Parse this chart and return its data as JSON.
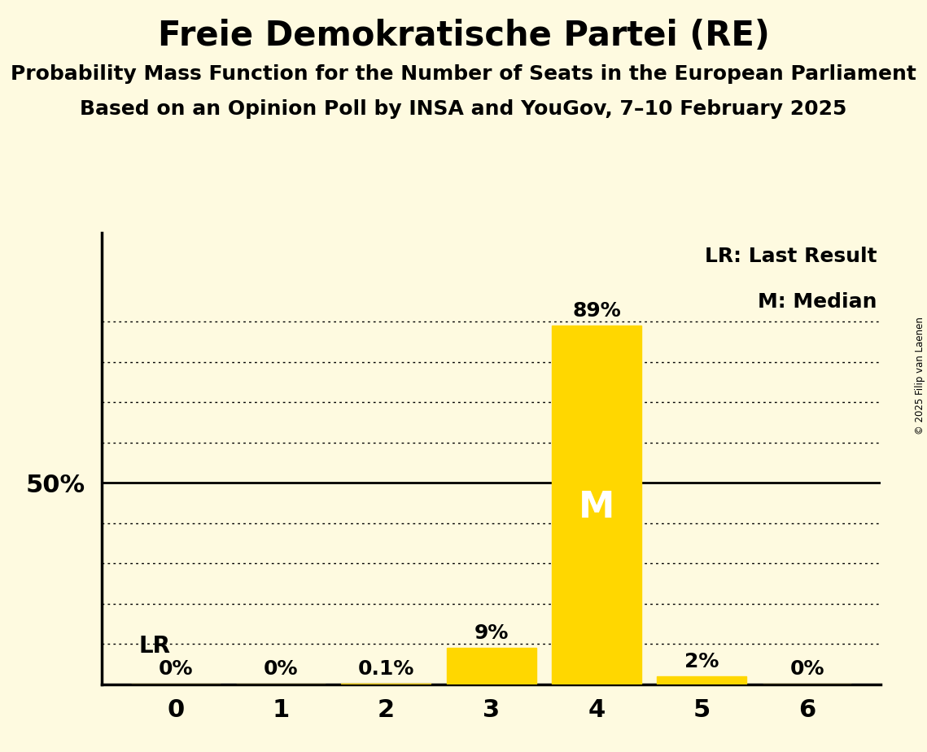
{
  "title": "Freie Demokratische Partei (RE)",
  "subtitle1": "Probability Mass Function for the Number of Seats in the European Parliament",
  "subtitle2": "Based on an Opinion Poll by INSA and YouGov, 7–10 February 2025",
  "copyright": "© 2025 Filip van Laenen",
  "x_values": [
    0,
    1,
    2,
    3,
    4,
    5,
    6
  ],
  "y_values": [
    0.0,
    0.0,
    0.001,
    0.09,
    0.89,
    0.02,
    0.0
  ],
  "bar_labels": [
    "0%",
    "0%",
    "0.1%",
    "9%",
    "89%",
    "2%",
    "0%"
  ],
  "bar_color": "#FFD700",
  "median_bar": 4,
  "lr_bar": 0,
  "background_color": "#FEFAE0",
  "title_fontsize": 30,
  "subtitle_fontsize": 18,
  "ylabel_50": "50%",
  "legend_lr": "LR: Last Result",
  "legend_m": "M: Median",
  "ylim": [
    0,
    1.12
  ],
  "grid_positions": [
    0.1,
    0.2,
    0.3,
    0.4,
    0.6,
    0.7,
    0.8,
    0.9
  ],
  "solid_line": 0.5
}
